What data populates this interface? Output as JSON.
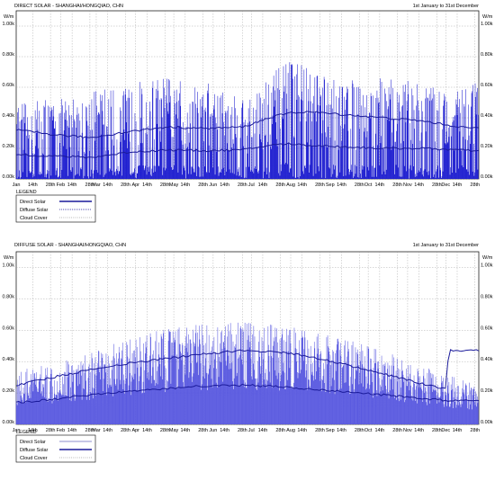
{
  "chart_data": [
    {
      "type": "line",
      "title": "DIRECT SOLAR - SHANGHAI/HONGQIAO, CHN",
      "subtitle": "1st January to 31st December",
      "ylabel": "W/m",
      "ylim": [
        0,
        1100
      ],
      "yticks": [
        "0.00k",
        "0.20k",
        "0.40k",
        "0.60k",
        "0.80k",
        "1.00k"
      ],
      "ytick_values": [
        0,
        200,
        400,
        600,
        800,
        1000
      ],
      "x_labels": [
        "Jan",
        "14th",
        "28th",
        "Feb",
        "14th",
        "28th",
        "Mar",
        "14th",
        "28th",
        "Apr",
        "14th",
        "28th",
        "May",
        "14th",
        "28th",
        "Jun",
        "14th",
        "28th",
        "Jul",
        "14th",
        "28th",
        "Aug",
        "14th",
        "28th",
        "Sep",
        "14th",
        "28th",
        "Oct",
        "14th",
        "28th",
        "Nov",
        "14th",
        "28th",
        "Dec",
        "14th",
        "28th"
      ],
      "x_label_days": [
        1,
        14,
        28,
        36,
        45,
        59,
        64,
        73,
        87,
        95,
        104,
        118,
        125,
        134,
        148,
        156,
        165,
        179,
        186,
        195,
        209,
        217,
        226,
        240,
        248,
        257,
        271,
        278,
        287,
        301,
        309,
        318,
        332,
        339,
        348,
        362
      ],
      "legend_title": "LEGEND",
      "legend": [
        {
          "label": "Direct Solar",
          "style": "solid-thick"
        },
        {
          "label": "Diffuse Solar",
          "style": "dotted"
        },
        {
          "label": "Cloud Cover",
          "style": "dotted-light"
        }
      ],
      "colors": {
        "series": "#1f1fd0",
        "avg": "#1a1a9a",
        "grid": "#9a9a9a"
      },
      "spike_profile": {
        "days": [
          1,
          30,
          60,
          90,
          120,
          150,
          180,
          200,
          215,
          230,
          250,
          280,
          310,
          335,
          365
        ],
        "peak": [
          470,
          500,
          540,
          600,
          640,
          610,
          520,
          640,
          740,
          700,
          620,
          640,
          620,
          580,
          600
        ]
      },
      "smoothed_series": [
        {
          "days": [
            1,
            30,
            60,
            90,
            120,
            150,
            180,
            200,
            215,
            230,
            260,
            290,
            320,
            350,
            365
          ],
          "values": [
            320,
            290,
            270,
            310,
            340,
            330,
            340,
            400,
            430,
            440,
            420,
            400,
            380,
            340,
            330
          ]
        },
        {
          "days": [
            1,
            30,
            60,
            90,
            120,
            150,
            180,
            200,
            215,
            230,
            260,
            290,
            320,
            350,
            365
          ],
          "values": [
            160,
            150,
            140,
            175,
            190,
            185,
            190,
            220,
            230,
            220,
            210,
            200,
            200,
            190,
            180
          ]
        }
      ]
    },
    {
      "type": "line",
      "title": "DIFFUSE SOLAR - SHANGHAI/HONGQIAO, CHN",
      "subtitle": "1st January to 31st December",
      "ylabel": "W/m",
      "ylim": [
        0,
        1100
      ],
      "yticks": [
        "0.00k",
        "0.20k",
        "0.40k",
        "0.60k",
        "0.80k",
        "1.00k"
      ],
      "ytick_values": [
        0,
        200,
        400,
        600,
        800,
        1000
      ],
      "x_labels": [
        "Jan",
        "14th",
        "28th",
        "Feb",
        "14th",
        "28th",
        "Mar",
        "14th",
        "28th",
        "Apr",
        "14th",
        "28th",
        "May",
        "14th",
        "28th",
        "Jun",
        "14th",
        "28th",
        "Jul",
        "14th",
        "28th",
        "Aug",
        "14th",
        "28th",
        "Sep",
        "14th",
        "28th",
        "Oct",
        "14th",
        "28th",
        "Nov",
        "14th",
        "28th",
        "Dec",
        "14th",
        "28th"
      ],
      "x_label_days": [
        1,
        14,
        28,
        36,
        45,
        59,
        64,
        73,
        87,
        95,
        104,
        118,
        125,
        134,
        148,
        156,
        165,
        179,
        186,
        195,
        209,
        217,
        226,
        240,
        248,
        257,
        271,
        278,
        287,
        301,
        309,
        318,
        332,
        339,
        348,
        362
      ],
      "legend_title": "LEGEND",
      "legend": [
        {
          "label": "Direct Solar",
          "style": "solid-thin"
        },
        {
          "label": "Diffuse Solar",
          "style": "solid-thick"
        },
        {
          "label": "Cloud Cover",
          "style": "dotted-light"
        }
      ],
      "colors": {
        "series": "#5a5ae0",
        "avg": "#1a1a9a",
        "grid": "#9a9a9a"
      },
      "spike_profile": {
        "days": [
          1,
          30,
          60,
          90,
          120,
          150,
          180,
          210,
          240,
          270,
          300,
          330,
          350,
          365
        ],
        "peak": [
          320,
          380,
          440,
          520,
          590,
          610,
          620,
          600,
          560,
          500,
          420,
          330,
          280,
          260
        ]
      },
      "smoothed_series": [
        {
          "days": [
            1,
            30,
            60,
            90,
            120,
            150,
            180,
            210,
            240,
            270,
            300,
            330,
            340,
            341,
            365
          ],
          "values": [
            250,
            300,
            350,
            390,
            420,
            450,
            470,
            460,
            420,
            360,
            300,
            240,
            220,
            470,
            470
          ]
        },
        {
          "days": [
            1,
            30,
            60,
            90,
            120,
            150,
            180,
            210,
            240,
            270,
            300,
            330,
            340,
            365
          ],
          "values": [
            140,
            160,
            190,
            210,
            230,
            245,
            250,
            240,
            220,
            200,
            180,
            160,
            150,
            150
          ]
        }
      ]
    }
  ]
}
